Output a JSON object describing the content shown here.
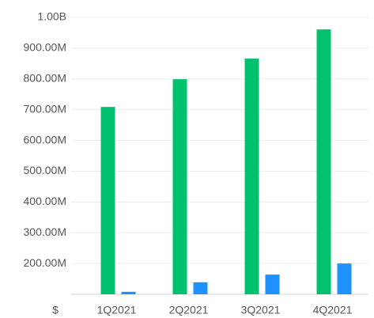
{
  "chart_data": {
    "type": "bar",
    "ylabel": "$",
    "categories": [
      "1Q2021",
      "2Q2021",
      "3Q2021",
      "4Q2021"
    ],
    "series": [
      {
        "color": "#00c16e",
        "values": [
          709000000,
          799000000,
          866000000,
          961000000
        ]
      },
      {
        "color": "#1e90ff",
        "values": [
          108000000,
          139000000,
          164000000,
          200000000
        ]
      }
    ],
    "ylim": [
      100000000,
      1000000000
    ],
    "yticks": [
      {
        "value": 200000000,
        "label": "200.00M"
      },
      {
        "value": 300000000,
        "label": "300.00M"
      },
      {
        "value": 400000000,
        "label": "400.00M"
      },
      {
        "value": 500000000,
        "label": "500.00M"
      },
      {
        "value": 600000000,
        "label": "600.00M"
      },
      {
        "value": 700000000,
        "label": "700.00M"
      },
      {
        "value": 800000000,
        "label": "800.00M"
      },
      {
        "value": 900000000,
        "label": "900.00M"
      },
      {
        "value": 1000000000,
        "label": "1.00B"
      }
    ],
    "grid": true
  }
}
